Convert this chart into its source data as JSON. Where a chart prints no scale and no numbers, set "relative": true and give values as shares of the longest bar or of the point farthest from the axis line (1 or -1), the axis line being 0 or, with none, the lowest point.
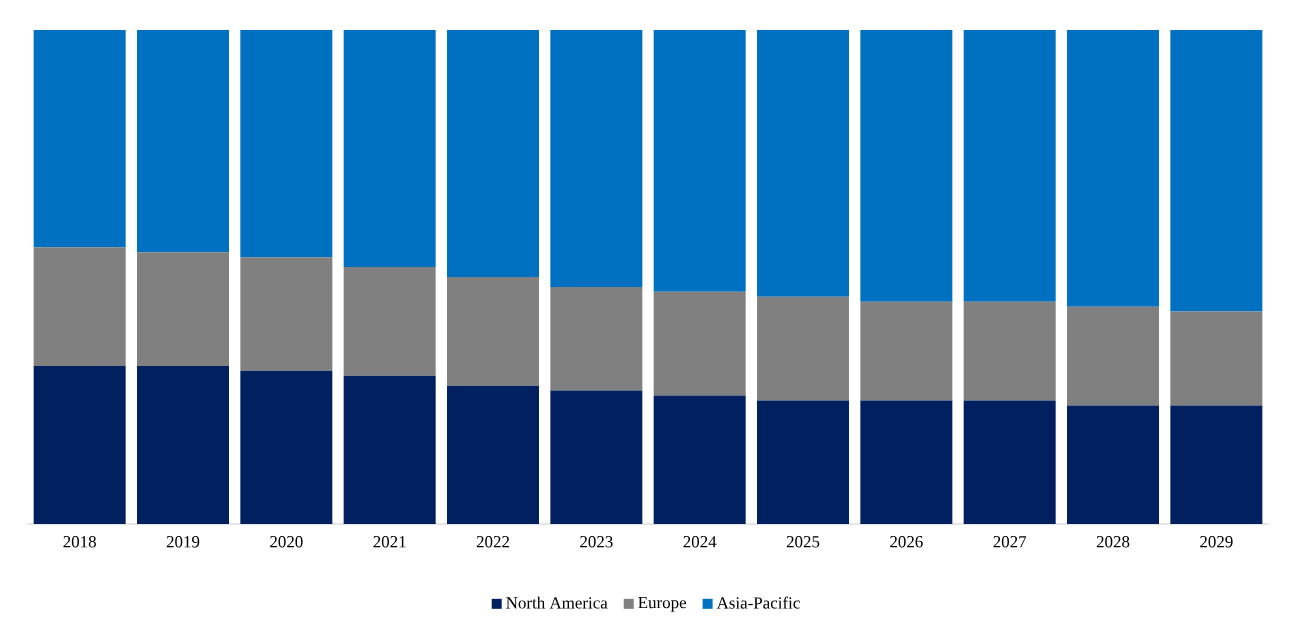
{
  "chart_data": {
    "type": "bar",
    "stacked": true,
    "relative": true,
    "legend": "bottom",
    "categories": [
      "2018",
      "2019",
      "2020",
      "2021",
      "2022",
      "2023",
      "2024",
      "2025",
      "2026",
      "2027",
      "2028",
      "2029"
    ],
    "series": [
      {
        "name": "North America",
        "color": "#002060",
        "values": [
          0.32,
          0.32,
          0.31,
          0.3,
          0.28,
          0.27,
          0.26,
          0.25,
          0.25,
          0.25,
          0.24,
          0.24
        ]
      },
      {
        "name": "Europe",
        "color": "#808080",
        "values": [
          0.24,
          0.23,
          0.23,
          0.22,
          0.22,
          0.21,
          0.21,
          0.21,
          0.2,
          0.2,
          0.2,
          0.19
        ]
      },
      {
        "name": "Asia-Pacific",
        "color": "#0070c0",
        "values": [
          0.44,
          0.45,
          0.46,
          0.48,
          0.5,
          0.52,
          0.53,
          0.54,
          0.55,
          0.55,
          0.56,
          0.57
        ]
      }
    ]
  }
}
